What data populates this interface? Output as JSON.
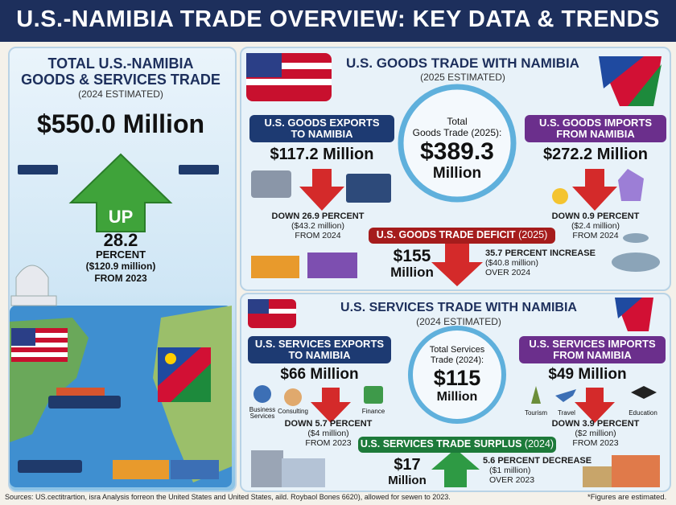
{
  "header": {
    "title": "U.S.-NAMIBIA TRADE OVERVIEW: KEY DATA & TRENDS"
  },
  "total": {
    "heading_line1": "TOTAL U.S.-NAMIBIA",
    "heading_line2": "GOODS & SERVICES TRADE",
    "period": "(2024 ESTIMATED)",
    "value": "$550.0 Million",
    "direction": "UP",
    "change": "28.2",
    "change_unit": "PERCENT",
    "change_amount": "($120.9 million)",
    "change_period": "FROM 2023"
  },
  "goods": {
    "title": "U.S. GOODS TRADE WITH NAMIBIA",
    "period": "(2025 ESTIMATED)",
    "exports": {
      "label_line1": "U.S. GOODS EXPORTS",
      "label_line2": "TO NAMIBIA",
      "value": "$117.2 Million",
      "change": "DOWN 26.9 PERCENT",
      "change_amount": "($43.2 million)",
      "change_period": "FROM 2024"
    },
    "total": {
      "label_line1": "Total",
      "label_line2": "Goods Trade (2025):",
      "value": "$389.3",
      "unit": "Million"
    },
    "imports": {
      "label_line1": "U.S. GOODS IMPORTS",
      "label_line2": "FROM NAMIBIA",
      "value": "$272.2 Million",
      "change": "DOWN 0.9 PERCENT",
      "change_amount": "($2.4 million)",
      "change_period": "FROM 2024"
    },
    "balance": {
      "label": "U.S. GOODS TRADE DEFICIT",
      "label_period": "(2025)",
      "value": "$155",
      "unit": "Million",
      "change": "35.7 PERCENT INCREASE",
      "change_amount": "($40.8 million)",
      "change_period": "OVER 2024"
    }
  },
  "services": {
    "title": "U.S. SERVICES TRADE WITH NAMIBIA",
    "period": "(2024 ESTIMATED)",
    "exports": {
      "label_line1": "U.S. SERVICES EXPORTS",
      "label_line2": "TO NAMIBIA",
      "value": "$66 Million",
      "icons": [
        "Business Services",
        "Consulting",
        "Finance"
      ],
      "change": "DOWN 5.7 PERCENT",
      "change_amount": "($4 million)",
      "change_period": "FROM 2023"
    },
    "total": {
      "label_line1": "Total Services",
      "label_line2": "Trade (2024):",
      "value": "$115",
      "unit": "Million"
    },
    "imports": {
      "label_line1": "U.S. SERVICES IMPORTS",
      "label_line2": "FROM NAMIBIA",
      "value": "$49 Million",
      "icons": [
        "Tourism",
        "Travel",
        "Education"
      ],
      "change": "DOWN 3.9 PERCENT",
      "change_amount": "($2 million)",
      "change_period": "FROM 2023"
    },
    "balance": {
      "label": "U.S. SERVICES TRADE SURPLUS",
      "label_period": "(2024)",
      "value": "$17",
      "unit": "Million",
      "change": "5.6 PERCENT DECREASE",
      "change_amount": "($1 million)",
      "change_period": "OVER 2023"
    }
  },
  "footer": {
    "sources": "Sources: US.cectitrartion, isra Analysis forreon the United States and United States, aild. Roybaol Bones 6620), allowed for sewen to 2023.",
    "note": "*Figures are estimated."
  }
}
